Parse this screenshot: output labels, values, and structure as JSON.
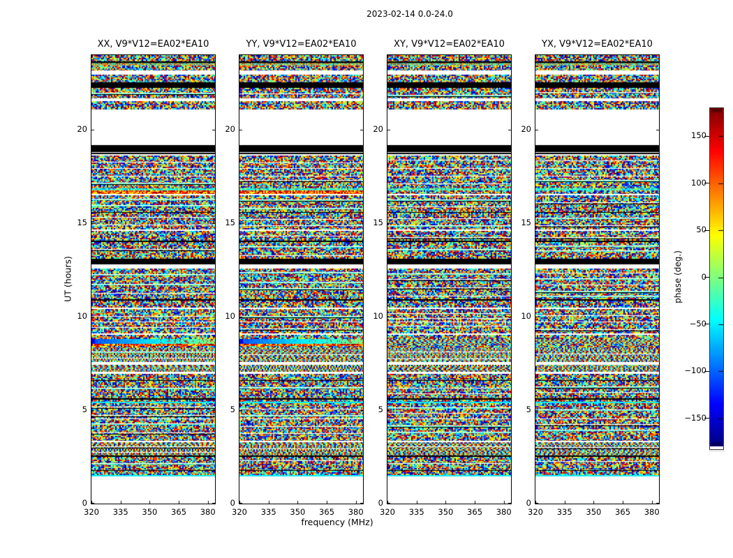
{
  "chart_data": {
    "type": "heatmap",
    "title": "2023-02-14 0.0-24.0",
    "description": "Four dynamic-spectrum phase heatmaps (polarizations XX, YY, XY, YX) for baseline V9*V12=EA02*EA10, phase noise in jet colormap vs frequency and UT time, with blank (white) and flagged (black) time ranges",
    "panels": [
      {
        "title": "XX, V9*V12=EA02*EA10",
        "pol": "XX"
      },
      {
        "title": "YY, V9*V12=EA02*EA10",
        "pol": "YY"
      },
      {
        "title": "XY, V9*V12=EA02*EA10",
        "pol": "XY"
      },
      {
        "title": "YX, V9*V12=EA02*EA10",
        "pol": "YX"
      }
    ],
    "x": {
      "label": "frequency (MHz)",
      "min": 320,
      "max": 383.7,
      "ticks": [
        320,
        335,
        350,
        365,
        380
      ]
    },
    "y": {
      "label": "UT (hours)",
      "min": 0,
      "max": 24,
      "ticks": [
        0,
        5,
        10,
        15,
        20
      ]
    },
    "colorbar": {
      "label": "phase (deg.)",
      "min": -180,
      "max": 180,
      "colormap": "jet",
      "ticks": [
        {
          "v": 150,
          "label": "150"
        },
        {
          "v": 100,
          "label": "100"
        },
        {
          "v": 50,
          "label": "50"
        },
        {
          "v": 0,
          "label": "0"
        },
        {
          "v": -50,
          "label": "−50"
        },
        {
          "v": -100,
          "label": "−100"
        },
        {
          "v": -150,
          "label": "−150"
        }
      ]
    },
    "bands": [
      [
        24.0,
        23.66,
        "noise"
      ],
      [
        23.66,
        23.6,
        "black"
      ],
      [
        23.6,
        23.44,
        "fine"
      ],
      [
        23.44,
        23.18,
        "noise"
      ],
      [
        23.18,
        22.97,
        "white"
      ],
      [
        22.97,
        22.56,
        "noise"
      ],
      [
        22.56,
        22.25,
        "black"
      ],
      [
        22.25,
        21.68,
        "noise"
      ],
      [
        21.68,
        21.52,
        "white"
      ],
      [
        21.52,
        21.1,
        "noise"
      ],
      [
        21.1,
        19.2,
        "white"
      ],
      [
        19.2,
        18.83,
        "black"
      ],
      [
        18.83,
        18.78,
        "white"
      ],
      [
        18.78,
        18.71,
        "black"
      ],
      [
        18.71,
        18.62,
        "white"
      ],
      [
        18.62,
        17.96,
        "noise"
      ],
      [
        17.96,
        17.9,
        "white"
      ],
      [
        17.9,
        17.56,
        "noise"
      ],
      [
        17.56,
        17.5,
        "white"
      ],
      [
        17.5,
        16.86,
        "noise"
      ],
      [
        16.86,
        16.76,
        "cyan-noise"
      ],
      [
        16.76,
        16.56,
        "warm"
      ],
      [
        16.56,
        16.5,
        "white"
      ],
      [
        16.5,
        15.6,
        "noise"
      ],
      [
        15.6,
        15.55,
        "black"
      ],
      [
        15.55,
        14.66,
        "noise"
      ],
      [
        14.66,
        14.6,
        "white"
      ],
      [
        14.6,
        14.06,
        "noise"
      ],
      [
        14.06,
        14.0,
        "black"
      ],
      [
        14.0,
        13.1,
        "noise"
      ],
      [
        13.1,
        12.82,
        "black"
      ],
      [
        12.82,
        12.56,
        "white"
      ],
      [
        12.56,
        10.92,
        "noise"
      ],
      [
        10.92,
        10.86,
        "black"
      ],
      [
        10.86,
        10.5,
        "noise"
      ],
      [
        10.5,
        10.42,
        "white"
      ],
      [
        10.42,
        9.76,
        "noise"
      ],
      [
        9.76,
        9.7,
        "white"
      ],
      [
        9.7,
        9.12,
        "noise"
      ],
      [
        9.12,
        9.02,
        "white"
      ],
      [
        9.02,
        8.82,
        "noise"
      ],
      [
        8.82,
        8.56,
        "gradient"
      ],
      [
        8.56,
        8.42,
        "warm"
      ],
      [
        8.42,
        8.32,
        "noise"
      ],
      [
        8.32,
        7.56,
        "striped"
      ],
      [
        7.56,
        7.44,
        "white"
      ],
      [
        7.44,
        7.06,
        "striped"
      ],
      [
        7.06,
        6.96,
        "white"
      ],
      [
        6.96,
        6.62,
        "noise"
      ],
      [
        6.62,
        6.56,
        "black"
      ],
      [
        6.56,
        5.62,
        "noise"
      ],
      [
        5.62,
        5.56,
        "black"
      ],
      [
        5.56,
        5.44,
        "noise"
      ],
      [
        5.44,
        5.38,
        "cyan"
      ],
      [
        5.38,
        4.56,
        "noise"
      ],
      [
        4.56,
        4.5,
        "white"
      ],
      [
        4.5,
        3.36,
        "noise"
      ],
      [
        3.36,
        3.28,
        "white"
      ],
      [
        3.28,
        2.56,
        "striped"
      ],
      [
        2.56,
        2.5,
        "black"
      ],
      [
        2.5,
        1.8,
        "noise"
      ],
      [
        1.8,
        1.74,
        "black"
      ],
      [
        1.74,
        1.54,
        "noise"
      ],
      [
        1.54,
        1.44,
        "cyan"
      ],
      [
        1.44,
        0.0,
        "white"
      ]
    ]
  }
}
